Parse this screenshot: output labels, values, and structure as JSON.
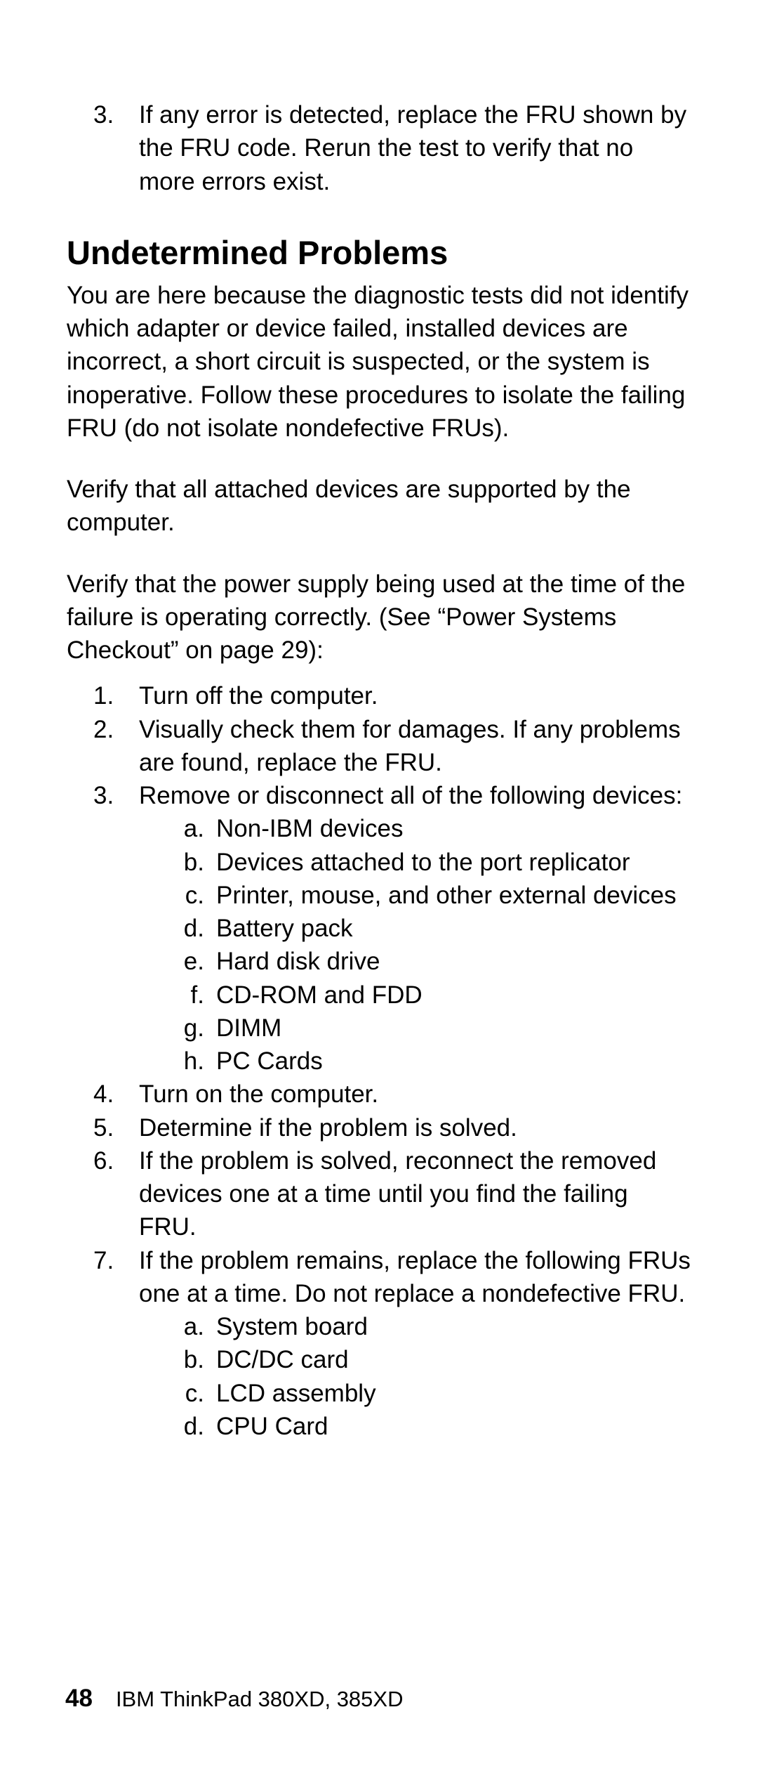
{
  "topList": {
    "marker": "3.",
    "text": "If any error is detected, replace the FRU shown by the FRU code.  Rerun the test to verify that no more errors exist."
  },
  "heading": "Undetermined Problems",
  "para1": "You are here because the diagnostic tests did not identify which adapter or device failed, installed devices are incorrect, a short circuit is suspected, or the system is inoperative.  Follow these procedures to isolate the failing FRU (do not isolate nondefective FRUs).",
  "para2": "Verify that all attached devices are supported by the computer.",
  "para3": "Verify that the power supply being used at the time of the failure is operating correctly.  (See “Power Systems Checkout” on page  29):",
  "steps": [
    {
      "marker": "1.",
      "text": "Turn off the computer."
    },
    {
      "marker": "2.",
      "text": "Visually check them for damages.  If any problems are found, replace the FRU."
    },
    {
      "marker": "3.",
      "text": "Remove or disconnect all of the following devices:",
      "sub": [
        {
          "marker": "a.",
          "text": "Non-IBM devices"
        },
        {
          "marker": "b.",
          "text": "Devices attached to the port replicator"
        },
        {
          "marker": "c.",
          "text": "Printer, mouse, and other external devices"
        },
        {
          "marker": "d.",
          "text": "Battery pack"
        },
        {
          "marker": "e.",
          "text": "Hard disk drive"
        },
        {
          "marker": "f.",
          "text": "CD-ROM and FDD"
        },
        {
          "marker": "g.",
          "text": "DIMM"
        },
        {
          "marker": "h.",
          "text": "PC Cards"
        }
      ]
    },
    {
      "marker": "4.",
      "text": "Turn on the computer."
    },
    {
      "marker": "5.",
      "text": "Determine if the problem is solved."
    },
    {
      "marker": "6.",
      "text": "If the problem is solved, reconnect the removed devices one at a time until you find the failing FRU."
    },
    {
      "marker": "7.",
      "text": "If the problem remains, replace the following FRUs one at a time.  Do not replace a nondefective FRU.",
      "sub": [
        {
          "marker": "a.",
          "text": "System board"
        },
        {
          "marker": "b.",
          "text": "DC/DC card"
        },
        {
          "marker": "c.",
          "text": "LCD assembly"
        },
        {
          "marker": "d.",
          "text": "CPU Card"
        }
      ]
    }
  ],
  "footer": {
    "page": "48",
    "title": "IBM ThinkPad 380XD, 385XD"
  }
}
